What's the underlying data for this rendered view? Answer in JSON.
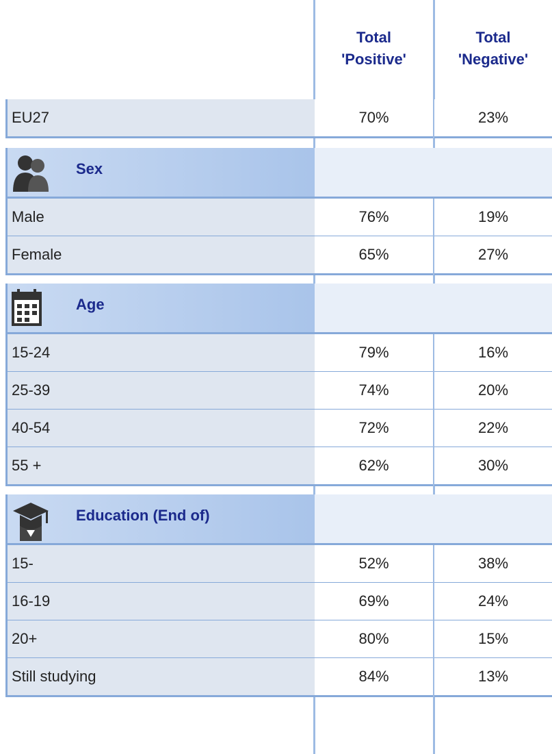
{
  "header": {
    "columns": [
      "Total 'Positive'",
      "Total 'Negative'"
    ]
  },
  "table": {
    "total": {
      "label": "EU27",
      "values": [
        "70%",
        "23%"
      ]
    },
    "sections": [
      {
        "title": "Sex",
        "rows": [
          {
            "label": "Male",
            "values": [
              "76%",
              "19%"
            ]
          },
          {
            "label": "Female",
            "values": [
              "65%",
              "27%"
            ]
          }
        ]
      },
      {
        "title": "Age",
        "rows": [
          {
            "label": "15-24",
            "values": [
              "79%",
              "16%"
            ]
          },
          {
            "label": "25-39",
            "values": [
              "74%",
              "20%"
            ]
          },
          {
            "label": "40-54",
            "values": [
              "72%",
              "22%"
            ]
          },
          {
            "label": "55 +",
            "values": [
              "62%",
              "30%"
            ]
          }
        ]
      },
      {
        "title": "Education (End of)",
        "rows": [
          {
            "label": "15-",
            "values": [
              "52%",
              "38%"
            ]
          },
          {
            "label": "16-19",
            "values": [
              "69%",
              "24%"
            ]
          },
          {
            "label": "20+",
            "values": [
              "80%",
              "15%"
            ]
          },
          {
            "label": "Still studying",
            "values": [
              "84%",
              "13%"
            ]
          }
        ]
      }
    ]
  }
}
